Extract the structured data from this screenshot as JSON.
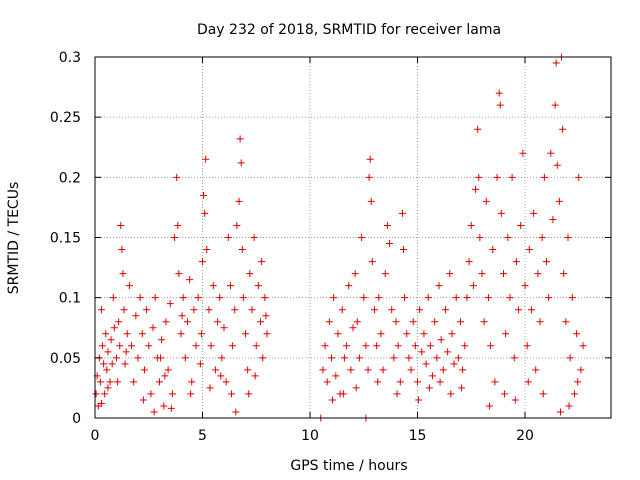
{
  "chart_data": {
    "type": "scatter",
    "title": "Day 232 of 2018, SRMTID for receiver lama",
    "xlabel": "GPS time / hours",
    "ylabel": "SRMTID / TECUs",
    "xlim": [
      0,
      24
    ],
    "ylim": [
      0,
      0.3
    ],
    "xticks": [
      0,
      5,
      10,
      15,
      20
    ],
    "yticks": [
      0,
      0.05,
      0.1,
      0.15,
      0.2,
      0.25,
      0.3
    ],
    "xtick_labels": [
      "0",
      "5",
      "10",
      "15",
      "20"
    ],
    "ytick_labels": [
      "0",
      "0.05",
      "0.1",
      "0.15",
      "0.2",
      "0.25",
      "0.3"
    ],
    "grid": true,
    "marker": "+",
    "color": "#e00000",
    "series": [
      {
        "name": "SRMTID",
        "points": [
          [
            0.05,
            0.02
          ],
          [
            0.1,
            0.035
          ],
          [
            0.15,
            0.01
          ],
          [
            0.2,
            0.05
          ],
          [
            0.25,
            0.03
          ],
          [
            0.3,
            0.012
          ],
          [
            0.35,
            0.06
          ],
          [
            0.4,
            0.045
          ],
          [
            0.45,
            0.02
          ],
          [
            0.5,
            0.07
          ],
          [
            0.55,
            0.04
          ],
          [
            0.6,
            0.055
          ],
          [
            0.7,
            0.03
          ],
          [
            0.75,
            0.065
          ],
          [
            0.8,
            0.045
          ],
          [
            0.9,
            0.075
          ],
          [
            1.0,
            0.05
          ],
          [
            1.05,
            0.03
          ],
          [
            1.1,
            0.08
          ],
          [
            1.15,
            0.06
          ],
          [
            1.2,
            0.16
          ],
          [
            1.25,
            0.14
          ],
          [
            1.3,
            0.12
          ],
          [
            1.35,
            0.09
          ],
          [
            1.4,
            0.045
          ],
          [
            1.5,
            0.07
          ],
          [
            1.6,
            0.11
          ],
          [
            1.7,
            0.06
          ],
          [
            1.8,
            0.03
          ],
          [
            1.9,
            0.085
          ],
          [
            2.0,
            0.05
          ],
          [
            2.1,
            0.1
          ],
          [
            2.2,
            0.07
          ],
          [
            2.3,
            0.04
          ],
          [
            2.4,
            0.09
          ],
          [
            2.5,
            0.06
          ],
          [
            2.6,
            0.02
          ],
          [
            2.7,
            0.075
          ],
          [
            2.8,
            0.1
          ],
          [
            2.9,
            0.05
          ],
          [
            3.0,
            0.03
          ],
          [
            3.1,
            0.065
          ],
          [
            3.2,
            0.01
          ],
          [
            3.3,
            0.08
          ],
          [
            3.4,
            0.04
          ],
          [
            3.5,
            0.095
          ],
          [
            3.6,
            0.02
          ],
          [
            3.7,
            0.15
          ],
          [
            3.8,
            0.2
          ],
          [
            3.85,
            0.16
          ],
          [
            3.9,
            0.12
          ],
          [
            4.0,
            0.07
          ],
          [
            4.1,
            0.1
          ],
          [
            4.2,
            0.05
          ],
          [
            4.3,
            0.08
          ],
          [
            4.4,
            0.115
          ],
          [
            4.5,
            0.03
          ],
          [
            4.6,
            0.09
          ],
          [
            4.7,
            0.06
          ],
          [
            4.8,
            0.1
          ],
          [
            4.9,
            0.045
          ],
          [
            5.0,
            0.13
          ],
          [
            5.05,
            0.185
          ],
          [
            5.1,
            0.17
          ],
          [
            5.15,
            0.215
          ],
          [
            5.2,
            0.14
          ],
          [
            5.3,
            0.09
          ],
          [
            5.4,
            0.06
          ],
          [
            5.5,
            0.11
          ],
          [
            5.6,
            0.04
          ],
          [
            5.7,
            0.08
          ],
          [
            5.8,
            0.1
          ],
          [
            5.9,
            0.05
          ],
          [
            6.0,
            0.075
          ],
          [
            6.1,
            0.03
          ],
          [
            6.2,
            0.15
          ],
          [
            6.3,
            0.11
          ],
          [
            6.4,
            0.06
          ],
          [
            6.5,
            0.09
          ],
          [
            6.6,
            0.16
          ],
          [
            6.7,
            0.18
          ],
          [
            6.75,
            0.232
          ],
          [
            6.8,
            0.212
          ],
          [
            6.85,
            0.14
          ],
          [
            6.9,
            0.1
          ],
          [
            7.0,
            0.07
          ],
          [
            7.1,
            0.04
          ],
          [
            7.2,
            0.12
          ],
          [
            7.3,
            0.09
          ],
          [
            7.4,
            0.15
          ],
          [
            7.5,
            0.06
          ],
          [
            7.6,
            0.11
          ],
          [
            7.7,
            0.08
          ],
          [
            7.8,
            0.05
          ],
          [
            7.9,
            0.1
          ],
          [
            8.0,
            0.07
          ],
          [
            0.3,
            0.09
          ],
          [
            0.6,
            0.025
          ],
          [
            0.85,
            0.1
          ],
          [
            1.45,
            0.055
          ],
          [
            2.25,
            0.015
          ],
          [
            2.75,
            0.005
          ],
          [
            3.05,
            0.05
          ],
          [
            3.25,
            0.035
          ],
          [
            3.55,
            0.008
          ],
          [
            4.05,
            0.085
          ],
          [
            4.45,
            0.02
          ],
          [
            4.95,
            0.07
          ],
          [
            5.35,
            0.025
          ],
          [
            5.85,
            0.035
          ],
          [
            6.35,
            0.02
          ],
          [
            6.55,
            0.005
          ],
          [
            7.15,
            0.02
          ],
          [
            7.45,
            0.035
          ],
          [
            7.75,
            0.13
          ],
          [
            7.95,
            0.085
          ],
          [
            10.5,
            0.0
          ],
          [
            12.6,
            0.0
          ],
          [
            10.6,
            0.04
          ],
          [
            10.7,
            0.06
          ],
          [
            10.8,
            0.03
          ],
          [
            10.9,
            0.08
          ],
          [
            11.0,
            0.05
          ],
          [
            11.1,
            0.1
          ],
          [
            11.2,
            0.035
          ],
          [
            11.3,
            0.07
          ],
          [
            11.4,
            0.02
          ],
          [
            11.5,
            0.09
          ],
          [
            11.6,
            0.05
          ],
          [
            11.7,
            0.06
          ],
          [
            11.8,
            0.11
          ],
          [
            11.9,
            0.04
          ],
          [
            12.0,
            0.075
          ],
          [
            12.1,
            0.12
          ],
          [
            12.2,
            0.08
          ],
          [
            12.3,
            0.05
          ],
          [
            12.4,
            0.15
          ],
          [
            12.5,
            0.1
          ],
          [
            12.6,
            0.06
          ],
          [
            12.7,
            0.04
          ],
          [
            12.75,
            0.2
          ],
          [
            12.8,
            0.215
          ],
          [
            12.85,
            0.18
          ],
          [
            12.9,
            0.13
          ],
          [
            13.0,
            0.09
          ],
          [
            13.1,
            0.06
          ],
          [
            13.2,
            0.1
          ],
          [
            13.3,
            0.07
          ],
          [
            13.4,
            0.04
          ],
          [
            13.5,
            0.12
          ],
          [
            13.6,
            0.16
          ],
          [
            13.7,
            0.145
          ],
          [
            13.8,
            0.09
          ],
          [
            13.9,
            0.05
          ],
          [
            14.0,
            0.08
          ],
          [
            14.1,
            0.06
          ],
          [
            14.2,
            0.03
          ],
          [
            14.3,
            0.17
          ],
          [
            14.35,
            0.14
          ],
          [
            14.4,
            0.1
          ],
          [
            14.5,
            0.07
          ],
          [
            14.6,
            0.05
          ],
          [
            14.7,
            0.04
          ],
          [
            14.8,
            0.08
          ],
          [
            14.9,
            0.06
          ],
          [
            15.0,
            0.03
          ],
          [
            15.1,
            0.09
          ],
          [
            15.2,
            0.055
          ],
          [
            15.3,
            0.07
          ],
          [
            15.4,
            0.045
          ],
          [
            15.5,
            0.1
          ],
          [
            15.6,
            0.06
          ],
          [
            15.7,
            0.035
          ],
          [
            15.8,
            0.08
          ],
          [
            15.9,
            0.05
          ],
          [
            16.0,
            0.11
          ],
          [
            16.1,
            0.065
          ],
          [
            16.2,
            0.04
          ],
          [
            16.3,
            0.09
          ],
          [
            16.4,
            0.055
          ],
          [
            16.5,
            0.12
          ],
          [
            16.6,
            0.07
          ],
          [
            16.7,
            0.045
          ],
          [
            16.8,
            0.1
          ],
          [
            16.9,
            0.05
          ],
          [
            17.0,
            0.08
          ],
          [
            17.1,
            0.04
          ],
          [
            17.2,
            0.06
          ],
          [
            17.3,
            0.1
          ],
          [
            17.4,
            0.13
          ],
          [
            17.5,
            0.16
          ],
          [
            17.6,
            0.11
          ],
          [
            17.7,
            0.19
          ],
          [
            17.8,
            0.24
          ],
          [
            17.85,
            0.2
          ],
          [
            17.9,
            0.15
          ],
          [
            18.0,
            0.12
          ],
          [
            18.1,
            0.08
          ],
          [
            18.2,
            0.18
          ],
          [
            18.3,
            0.1
          ],
          [
            18.4,
            0.06
          ],
          [
            18.5,
            0.14
          ],
          [
            18.6,
            0.03
          ],
          [
            18.7,
            0.2
          ],
          [
            18.8,
            0.27
          ],
          [
            18.85,
            0.26
          ],
          [
            18.9,
            0.17
          ],
          [
            19.0,
            0.12
          ],
          [
            19.1,
            0.07
          ],
          [
            19.2,
            0.15
          ],
          [
            19.3,
            0.1
          ],
          [
            19.4,
            0.2
          ],
          [
            19.5,
            0.05
          ],
          [
            19.6,
            0.13
          ],
          [
            19.7,
            0.09
          ],
          [
            19.8,
            0.16
          ],
          [
            19.9,
            0.22
          ],
          [
            20.0,
            0.11
          ],
          [
            20.1,
            0.06
          ],
          [
            20.2,
            0.14
          ],
          [
            20.3,
            0.09
          ],
          [
            20.4,
            0.17
          ],
          [
            20.5,
            0.04
          ],
          [
            20.6,
            0.12
          ],
          [
            20.7,
            0.08
          ],
          [
            20.8,
            0.15
          ],
          [
            20.9,
            0.2
          ],
          [
            21.0,
            0.13
          ],
          [
            21.1,
            0.1
          ],
          [
            21.2,
            0.22
          ],
          [
            21.3,
            0.165
          ],
          [
            21.4,
            0.26
          ],
          [
            21.45,
            0.295
          ],
          [
            21.5,
            0.21
          ],
          [
            21.6,
            0.18
          ],
          [
            21.7,
            0.3
          ],
          [
            21.75,
            0.24
          ],
          [
            21.8,
            0.12
          ],
          [
            21.9,
            0.08
          ],
          [
            22.0,
            0.15
          ],
          [
            22.1,
            0.05
          ],
          [
            22.2,
            0.1
          ],
          [
            22.3,
            0.02
          ],
          [
            22.4,
            0.07
          ],
          [
            22.5,
            0.2
          ],
          [
            22.6,
            0.04
          ],
          [
            22.7,
            0.06
          ],
          [
            11.05,
            0.015
          ],
          [
            11.55,
            0.02
          ],
          [
            12.15,
            0.025
          ],
          [
            13.15,
            0.03
          ],
          [
            14.05,
            0.02
          ],
          [
            15.05,
            0.015
          ],
          [
            15.55,
            0.025
          ],
          [
            16.05,
            0.03
          ],
          [
            16.55,
            0.02
          ],
          [
            17.05,
            0.025
          ],
          [
            18.35,
            0.01
          ],
          [
            19.05,
            0.02
          ],
          [
            19.55,
            0.015
          ],
          [
            20.15,
            0.03
          ],
          [
            20.85,
            0.02
          ],
          [
            21.65,
            0.005
          ],
          [
            22.05,
            0.01
          ],
          [
            22.45,
            0.03
          ]
        ]
      }
    ]
  }
}
